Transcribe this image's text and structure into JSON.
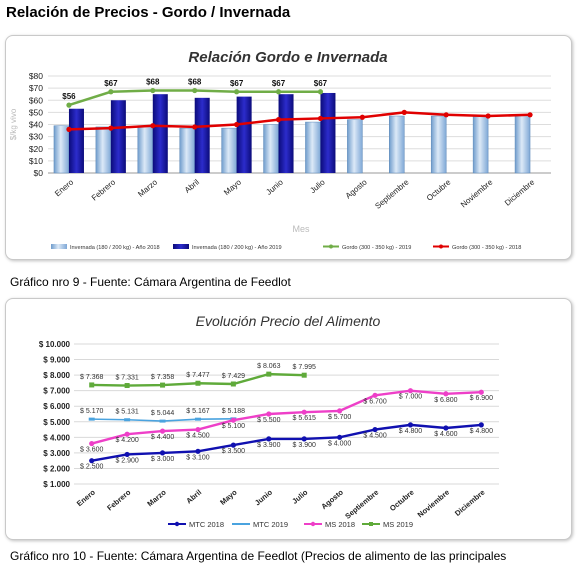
{
  "page": {
    "heading": "Relación de Precios - Gordo / Invernada",
    "caption1": "Gráfico nro 9 -  Fuente: Cámara Argentina de Feedlot",
    "caption2": "Gráfico nro 10 -  Fuente: Cámara Argentina de Feedlot (Precios de alimento de las principales"
  },
  "chart_data": [
    {
      "type": "bar",
      "title": "Relación Gordo e Invernada",
      "xlabel": "Mes",
      "ylabel": "$/kg vivo",
      "ylim": [
        0,
        80
      ],
      "yticks": [
        "$0",
        "$10",
        "$20",
        "$30",
        "$40",
        "$50",
        "$60",
        "$70",
        "$80"
      ],
      "grid": true,
      "legend": "bottom",
      "categories": [
        "Enero",
        "Febrero",
        "Marzo",
        "Abril",
        "Mayo",
        "Junio",
        "Julio",
        "Agosto",
        "Septiembre",
        "Octubre",
        "Noviembre",
        "Diciembre"
      ],
      "series": [
        {
          "name": "Invernada (180 / 200 kg) - Año 2018",
          "kind": "bar",
          "color": "#9dc3e6",
          "values": [
            39,
            38,
            39,
            37,
            37,
            40,
            42,
            44,
            47,
            47,
            47,
            48
          ]
        },
        {
          "name": "Invernada (180 / 200 kg) - Año 2019",
          "kind": "bar",
          "color": "#1f1fb4",
          "values": [
            53,
            60,
            65,
            62,
            63,
            65,
            66,
            null,
            null,
            null,
            null,
            null
          ]
        },
        {
          "name": "Gordo (300 - 350 kg) - 2019",
          "kind": "line",
          "color": "#70ad47",
          "values": [
            56,
            67,
            68,
            68,
            67,
            67,
            67,
            null,
            null,
            null,
            null,
            null
          ],
          "labels": [
            "$56",
            "$67",
            "$68",
            "$68",
            "$67",
            "$67",
            "$67",
            "",
            "",
            "",
            "",
            ""
          ]
        },
        {
          "name": "Gordo (300 - 350 kg) - 2018",
          "kind": "line",
          "color": "#e00000",
          "values": [
            36,
            37,
            39,
            38,
            40,
            44,
            45,
            46,
            50,
            48,
            47,
            48
          ]
        }
      ]
    },
    {
      "type": "line",
      "title": "Evolución Precio del Alimento",
      "ylim": [
        1000,
        10000
      ],
      "yticks": [
        "$ 1.000",
        "$ 2.000",
        "$ 3.000",
        "$ 4.000",
        "$ 5.000",
        "$ 6.000",
        "$ 7.000",
        "$ 8.000",
        "$ 9.000",
        "$ 10.000"
      ],
      "grid": true,
      "legend": "bottom",
      "categories": [
        "Enero",
        "Febrero",
        "Marzo",
        "Abril",
        "Mayo",
        "Junio",
        "Julio",
        "Agosto",
        "Septiembre",
        "Octubre",
        "Noviembre",
        "Diciembre"
      ],
      "series": [
        {
          "name": "MTC 2018",
          "color": "#1010b0",
          "marker": "circle",
          "values": [
            2500,
            2900,
            3000,
            3100,
            3500,
            3900,
            3900,
            4000,
            4500,
            4800,
            4600,
            4800
          ],
          "labels": [
            "$ 2.500",
            "$ 2.900",
            "$ 3.000",
            "$ 3.100",
            "$ 3.500",
            "$ 3.900",
            "$ 3.900",
            "$ 4.000",
            "$ 4.500",
            "$ 4.800",
            "$ 4.600",
            "$ 4.800"
          ]
        },
        {
          "name": "MTC 2019",
          "color": "#4aa3df",
          "marker": "dash",
          "values": [
            5170,
            5131,
            5044,
            5167,
            5188,
            null,
            null,
            null,
            null,
            null,
            null,
            null
          ],
          "labels": [
            "$ 5.170",
            "$ 5.131",
            "$ 5.044",
            "$ 5.167",
            "$ 5.188",
            "",
            "",
            "",
            "",
            "",
            "",
            ""
          ]
        },
        {
          "name": "MS 2018",
          "color": "#ee3fc8",
          "marker": "circle",
          "values": [
            3600,
            4200,
            4400,
            4500,
            5100,
            5500,
            5615,
            5700,
            6700,
            7000,
            6800,
            6900
          ],
          "labels": [
            "$ 3.600",
            "$ 4.200",
            "$ 4.400",
            "$ 4.500",
            "$ 5.100",
            "$ 5.500",
            "$ 5.615",
            "$ 5.700",
            "$ 6.700",
            "$ 7.000",
            "$ 6.800",
            "$ 6.900"
          ]
        },
        {
          "name": "MS 2019",
          "color": "#5faa3a",
          "marker": "square",
          "values": [
            7368,
            7331,
            7358,
            7477,
            7429,
            8063,
            7995,
            null,
            null,
            null,
            null,
            null
          ],
          "labels": [
            "$ 7.368",
            "$ 7.331",
            "$ 7.358",
            "$ 7.477",
            "$ 7.429",
            "$ 8.063",
            "$ 7.995",
            "",
            "",
            "",
            "",
            ""
          ]
        }
      ]
    }
  ]
}
